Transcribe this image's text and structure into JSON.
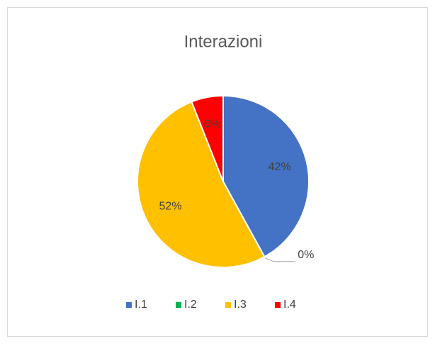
{
  "chart_data": {
    "type": "pie",
    "title": "Interazioni",
    "categories": [
      "I.1",
      "I.2",
      "I.3",
      "I.4"
    ],
    "values": [
      42,
      0,
      52,
      6
    ],
    "value_labels": [
      "42%",
      "0%",
      "52%",
      "6%"
    ],
    "colors": [
      "#4472c4",
      "#00b050",
      "#ffc000",
      "#ff0000"
    ],
    "legend": "bottom"
  }
}
